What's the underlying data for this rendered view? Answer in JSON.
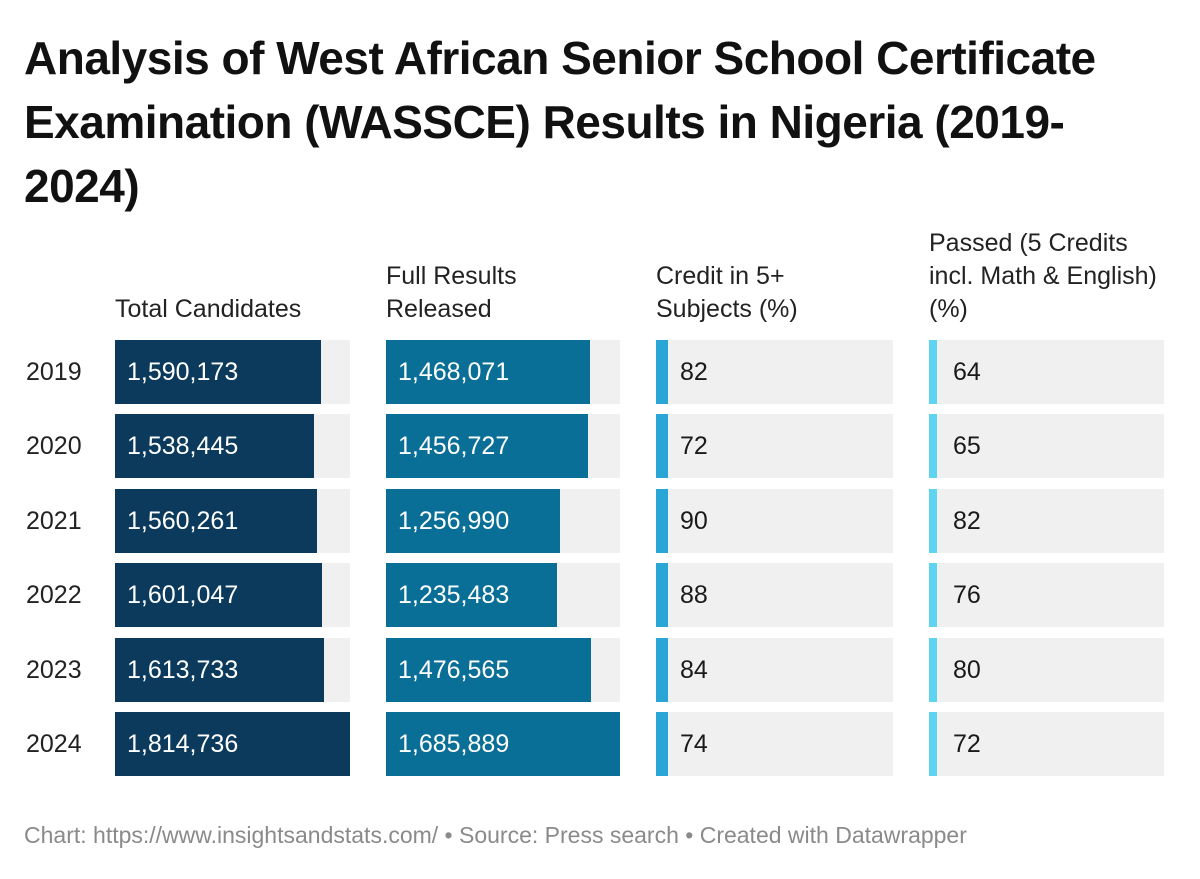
{
  "title": "Analysis of West African Senior School Certificate Examination (WASSCE) Results in Nigeria (2019-2024)",
  "footer": "Chart: https://www.insightsandstats.com/ • Source: Press search • Created with Datawrapper",
  "colors": {
    "total_candidates": "#0b3a5c",
    "full_results": "#0a6f96",
    "credit_5plus": "#2aa6d6",
    "passed": "#5fd3f2",
    "track": "#f0f0f0"
  },
  "chart_data": {
    "type": "table",
    "categories": [
      "2019",
      "2020",
      "2021",
      "2022",
      "2023",
      "2024"
    ],
    "columns": [
      {
        "header": "Total Candidates",
        "key": "total_candidates",
        "max": 1814736,
        "values": [
          1590173,
          1538445,
          1560261,
          1601047,
          1613733,
          1814736
        ],
        "labels": [
          "1,590,173",
          "1,538,445",
          "1,560,261",
          "1,601,047",
          "1,613,733",
          "1,814,736"
        ]
      },
      {
        "header": "Full Results Released",
        "key": "full_results",
        "max": 1685889,
        "values": [
          1468071,
          1456727,
          1256990,
          1235483,
          1476565,
          1685889
        ],
        "labels": [
          "1,468,071",
          "1,456,727",
          "1,256,990",
          "1,235,483",
          "1,476,565",
          "1,685,889"
        ]
      },
      {
        "header": "Credit in 5+ Subjects (%)",
        "key": "credit_5plus",
        "max": 100,
        "values": [
          82,
          72,
          90,
          88,
          84,
          74
        ],
        "labels": [
          "82",
          "72",
          "90",
          "88",
          "84",
          "74"
        ]
      },
      {
        "header": "Passed (5 Credits incl. Math & English) (%)",
        "key": "passed",
        "max": 100,
        "values": [
          64,
          65,
          82,
          76,
          80,
          72
        ],
        "labels": [
          "64",
          "65",
          "82",
          "76",
          "80",
          "72"
        ]
      }
    ]
  }
}
